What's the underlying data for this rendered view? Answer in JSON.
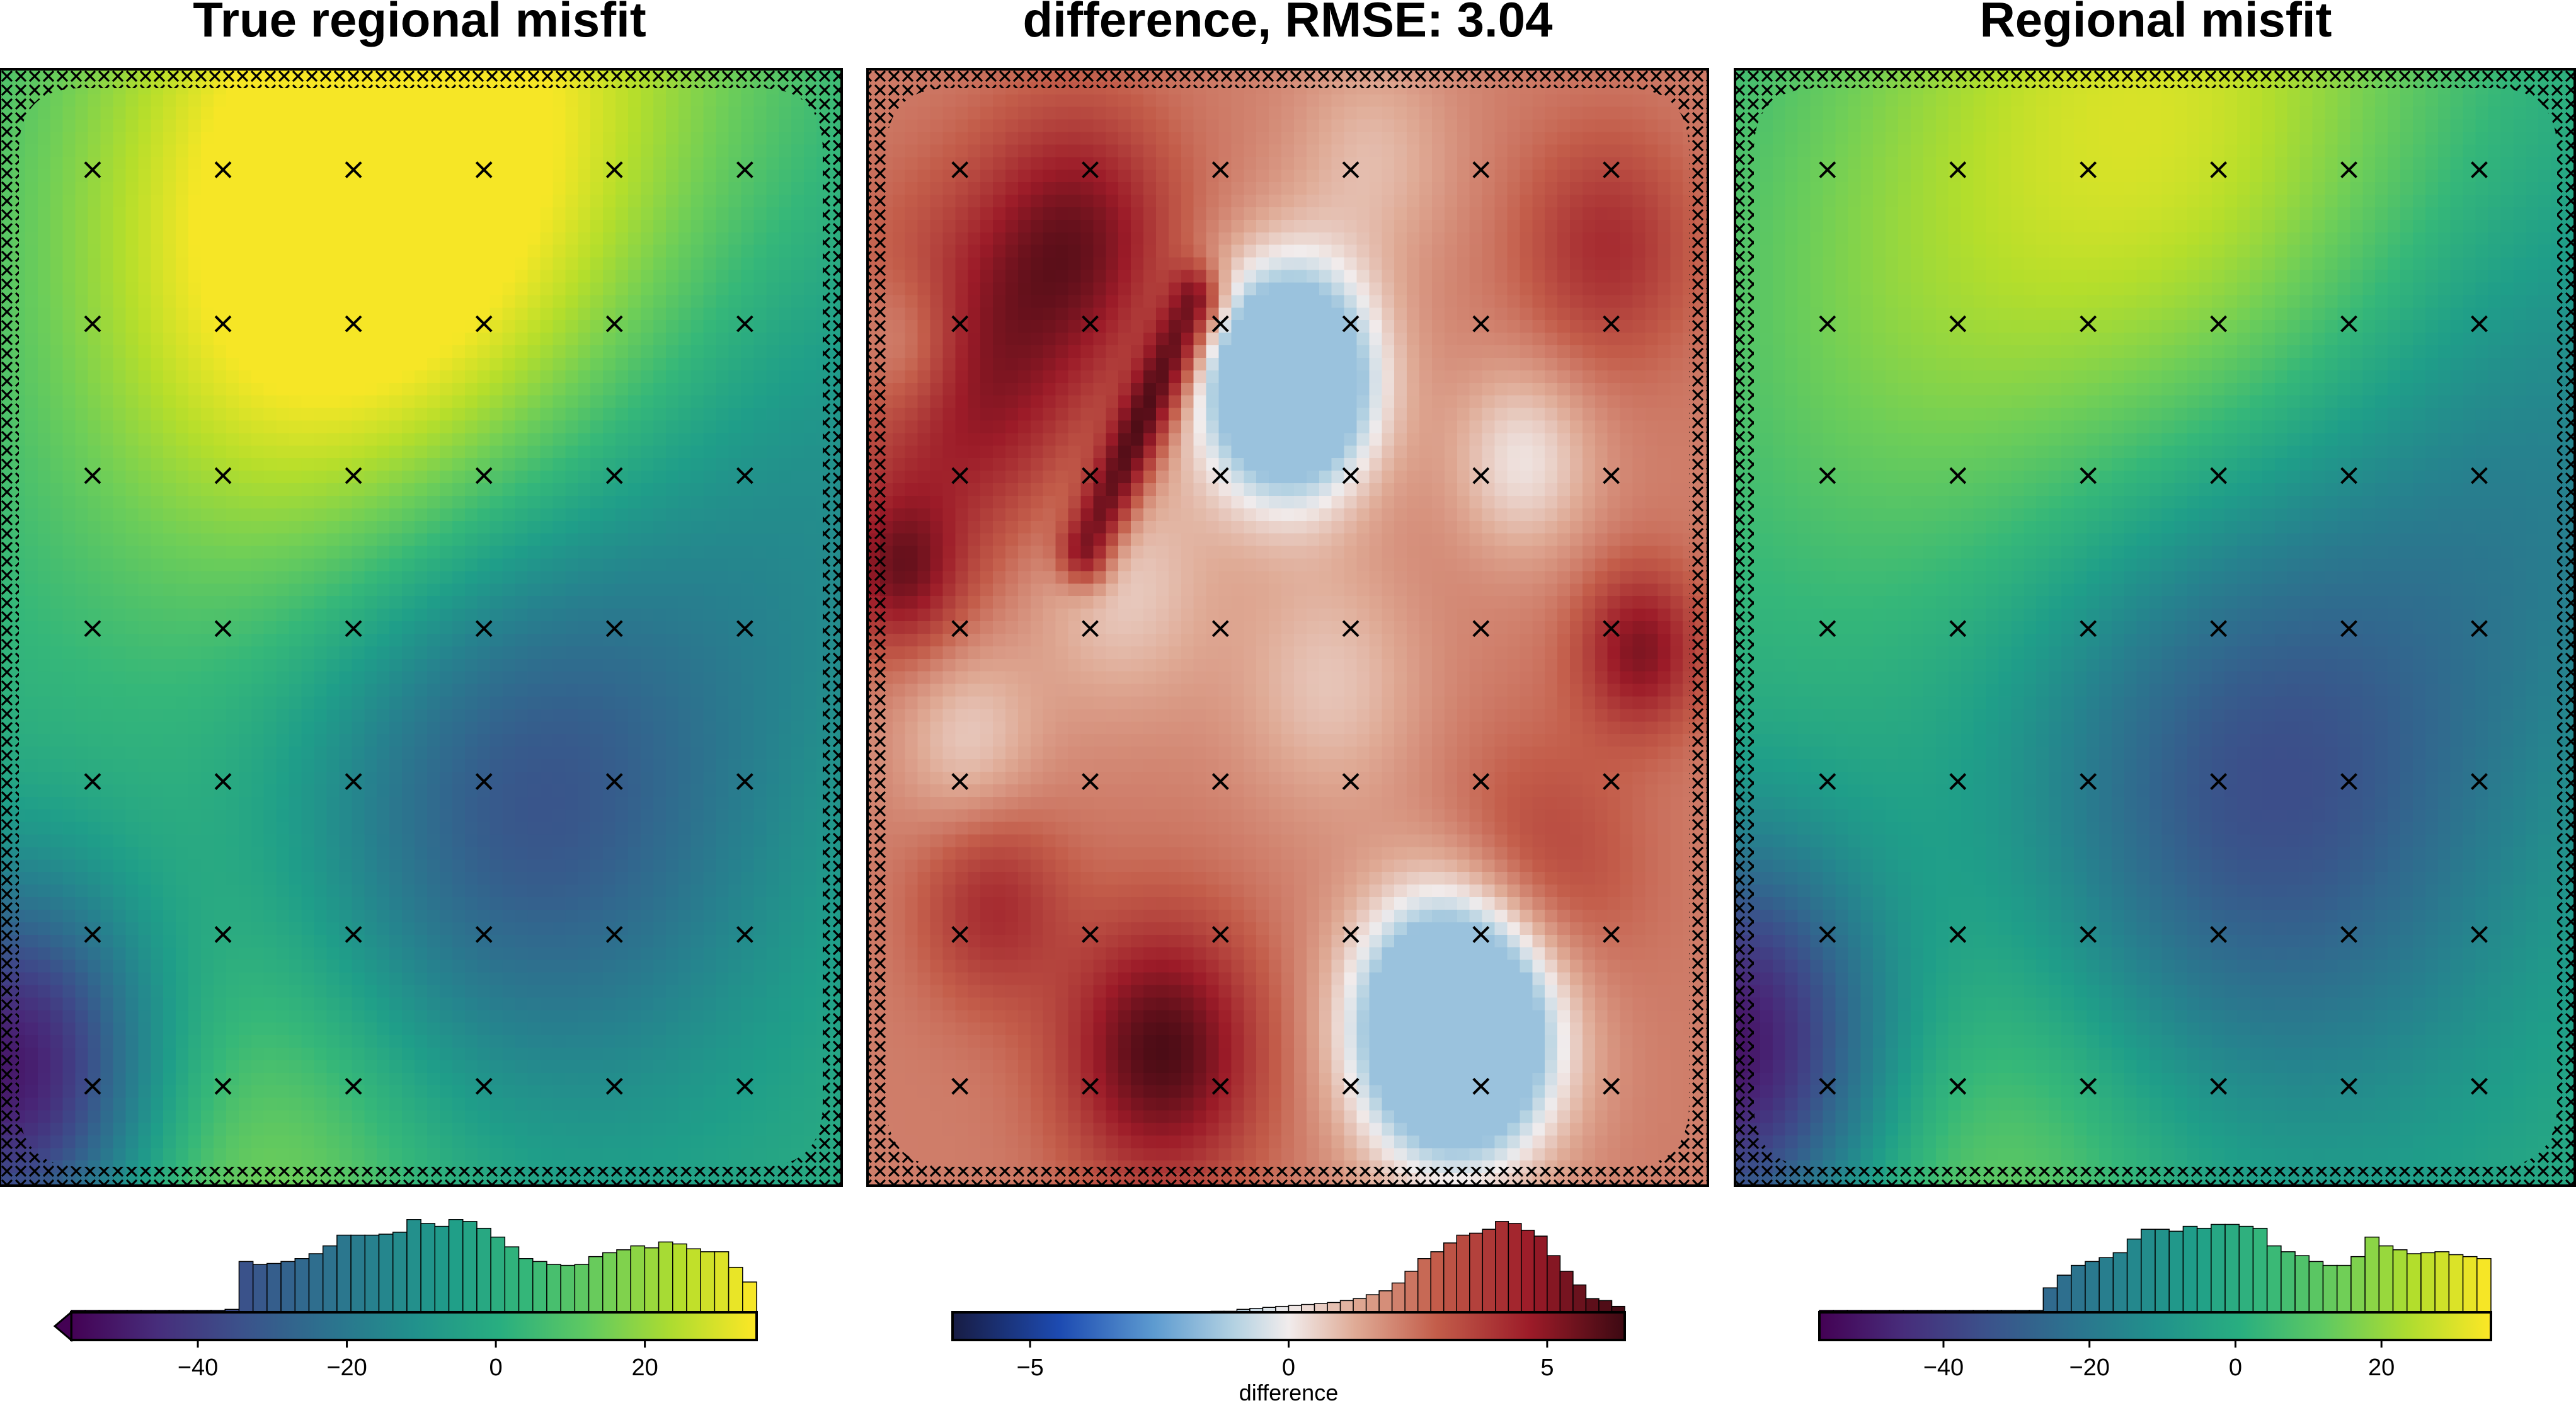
{
  "chart_data": [
    {
      "type": "heatmap",
      "title": "True regional misfit",
      "colormap": "viridis",
      "blobs": [
        {
          "u": 0.55,
          "v": 0.05,
          "s": 0.28,
          "a": 32
        },
        {
          "u": 0.35,
          "v": 0.2,
          "s": 0.22,
          "a": 22
        },
        {
          "u": 0.62,
          "v": 0.64,
          "s": 0.2,
          "a": -36
        },
        {
          "u": 0.02,
          "v": 0.9,
          "s": 0.12,
          "a": -55
        },
        {
          "u": 0.3,
          "v": 1.0,
          "s": 0.18,
          "a": 18
        },
        {
          "u": 0.95,
          "v": 0.35,
          "s": 0.2,
          "a": -14
        }
      ],
      "vmin": -57,
      "vmax": 35,
      "clip_low": -56,
      "clip_high": 34,
      "colorbar": {
        "range": [
          -57,
          35
        ],
        "ticks": [
          -40,
          -20,
          0,
          20
        ],
        "tick_labels": [
          "−40",
          "−20",
          "0",
          "20"
        ],
        "label": "",
        "extend": "min",
        "histogram": [
          0.02,
          0.02,
          0.02,
          0.02,
          0.02,
          0.02,
          0.02,
          0.02,
          0.02,
          0.02,
          0.02,
          0.03,
          0.52,
          0.49,
          0.5,
          0.52,
          0.55,
          0.6,
          0.68,
          0.79,
          0.79,
          0.79,
          0.8,
          0.82,
          0.95,
          0.91,
          0.88,
          0.95,
          0.93,
          0.86,
          0.77,
          0.67,
          0.55,
          0.52,
          0.49,
          0.48,
          0.49,
          0.57,
          0.61,
          0.64,
          0.68,
          0.66,
          0.72,
          0.7,
          0.65,
          0.62,
          0.62,
          0.46,
          0.31
        ]
      },
      "markers": "x"
    },
    {
      "type": "heatmap",
      "title": "difference, RMSE: 3.04",
      "colormap": "balance",
      "base": 2.2,
      "blobs": [
        {
          "u": 0.5,
          "v": 0.28,
          "s": 0.07,
          "a": -8
        },
        {
          "u": 0.7,
          "v": 0.86,
          "s": 0.08,
          "a": -9
        },
        {
          "u": 0.12,
          "v": 0.28,
          "s": 0.1,
          "a": 3
        },
        {
          "u": 0.25,
          "v": 0.15,
          "s": 0.08,
          "a": 3
        },
        {
          "u": 0.35,
          "v": 0.88,
          "s": 0.08,
          "a": 4
        },
        {
          "u": 0.04,
          "v": 0.45,
          "s": 0.05,
          "a": 3
        },
        {
          "u": 0.92,
          "v": 0.52,
          "s": 0.05,
          "a": 3
        },
        {
          "u": 0.88,
          "v": 0.16,
          "s": 0.07,
          "a": 2
        },
        {
          "u": 0.15,
          "v": 0.75,
          "s": 0.06,
          "a": 2
        },
        {
          "u": 0.8,
          "v": 0.72,
          "s": 0.08,
          "a": 1.5
        },
        {
          "u": 0.05,
          "v": 0.25,
          "s": 0.05,
          "a": -2
        },
        {
          "u": 0.78,
          "v": 0.35,
          "s": 0.06,
          "a": -2
        },
        {
          "u": 0.3,
          "v": 0.46,
          "s": 0.08,
          "a": -1.6
        },
        {
          "u": 0.55,
          "v": 0.55,
          "s": 0.08,
          "a": -1.4
        },
        {
          "u": 0.12,
          "v": 0.6,
          "s": 0.06,
          "a": -1.5
        },
        {
          "u": 0.6,
          "v": 0.08,
          "s": 0.07,
          "a": -1.2
        }
      ],
      "ridge": {
        "p0": [
          0.39,
          0.21
        ],
        "p1": [
          0.26,
          0.43
        ],
        "width": 0.022,
        "a": 4
      },
      "vmin": -6.5,
      "vmax": 6.5,
      "clip_low": -1.5,
      "clip_high": 6.4,
      "colorbar": {
        "range": [
          -6.5,
          6.5
        ],
        "ticks": [
          -5,
          0,
          5
        ],
        "tick_labels": [
          "−5",
          "0",
          "5"
        ],
        "label": "difference",
        "extend": "none",
        "histogram": [
          0,
          0,
          0,
          0,
          0,
          0,
          0,
          0,
          0,
          0,
          0,
          0,
          0,
          0,
          0,
          0,
          0,
          0,
          0,
          0,
          0.01,
          0.01,
          0.03,
          0.04,
          0.05,
          0.06,
          0.07,
          0.08,
          0.09,
          0.1,
          0.12,
          0.14,
          0.18,
          0.22,
          0.3,
          0.42,
          0.55,
          0.62,
          0.71,
          0.79,
          0.81,
          0.85,
          0.93,
          0.91,
          0.84,
          0.78,
          0.58,
          0.42,
          0.28,
          0.14,
          0.12,
          0.06
        ]
      },
      "markers": "x"
    },
    {
      "type": "heatmap",
      "title": "Regional misfit",
      "colormap": "viridis",
      "blobs": [
        {
          "u": 0.5,
          "v": 0.06,
          "s": 0.26,
          "a": 30
        },
        {
          "u": 0.62,
          "v": 0.64,
          "s": 0.21,
          "a": -36
        },
        {
          "u": 0.0,
          "v": 0.88,
          "s": 0.13,
          "a": -55
        },
        {
          "u": 0.3,
          "v": 1.0,
          "s": 0.18,
          "a": 16
        },
        {
          "u": 0.95,
          "v": 0.35,
          "s": 0.2,
          "a": -16
        },
        {
          "u": 0.15,
          "v": 0.25,
          "s": 0.18,
          "a": 8
        }
      ],
      "vmin": -57,
      "vmax": 35,
      "clip_low": -56,
      "clip_high": 34,
      "colorbar": {
        "range": [
          -57,
          35
        ],
        "ticks": [
          -40,
          -20,
          0,
          20
        ],
        "tick_labels": [
          "−40",
          "−20",
          "0",
          "20"
        ],
        "label": "",
        "extend": "none",
        "histogram": [
          0.02,
          0.02,
          0.02,
          0.02,
          0.02,
          0.02,
          0.02,
          0.02,
          0.02,
          0.02,
          0.02,
          0.02,
          0.02,
          0.02,
          0.02,
          0.02,
          0.25,
          0.38,
          0.48,
          0.52,
          0.56,
          0.61,
          0.75,
          0.85,
          0.85,
          0.83,
          0.88,
          0.86,
          0.9,
          0.9,
          0.88,
          0.86,
          0.68,
          0.62,
          0.58,
          0.52,
          0.48,
          0.48,
          0.57,
          0.77,
          0.68,
          0.64,
          0.6,
          0.61,
          0.62,
          0.59,
          0.57,
          0.55
        ]
      },
      "markers": "x"
    }
  ]
}
